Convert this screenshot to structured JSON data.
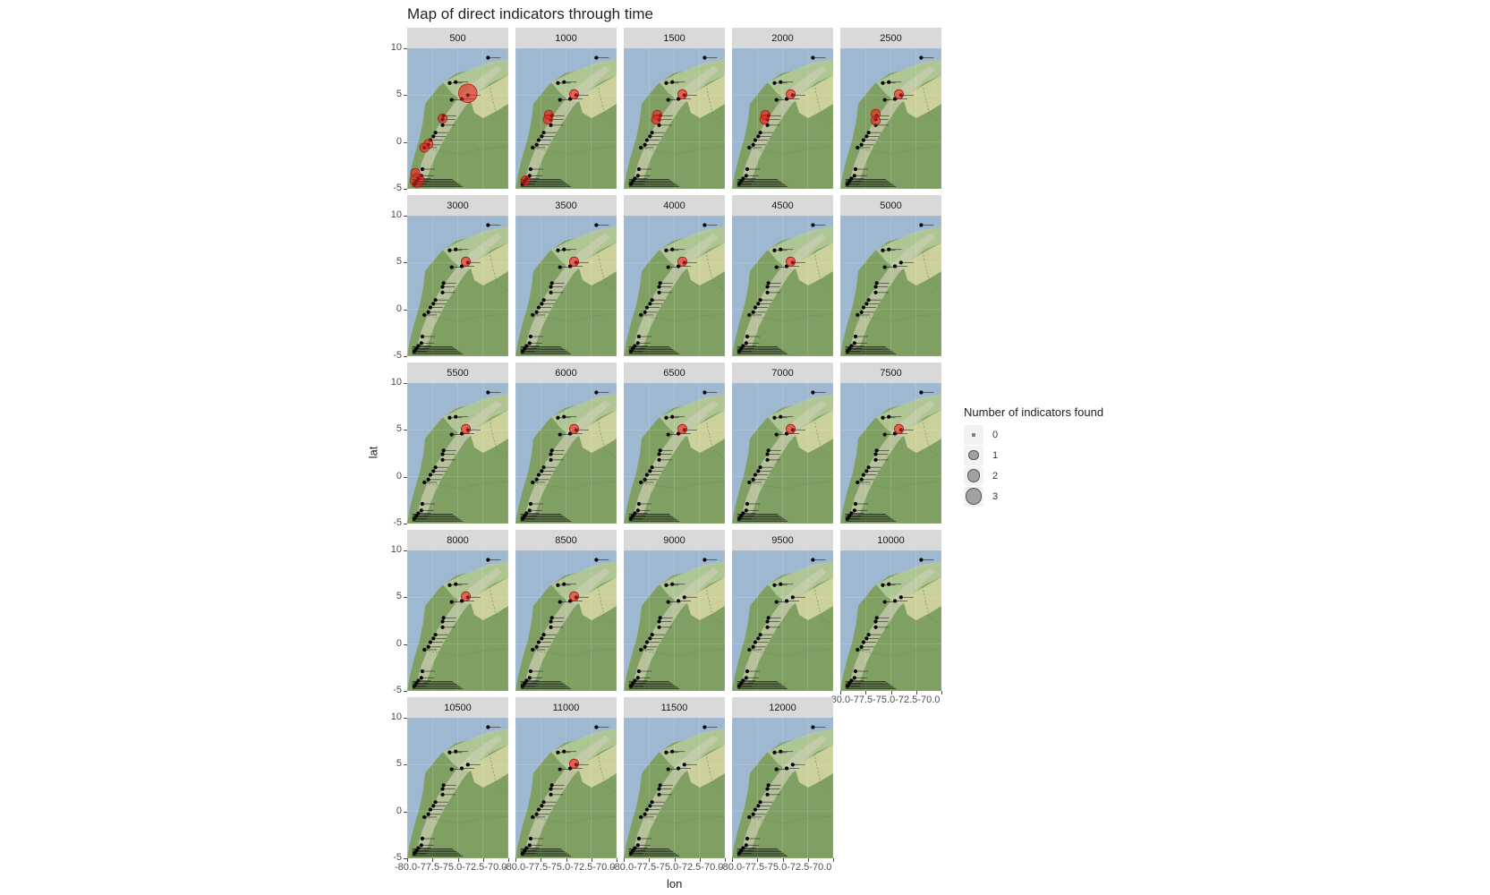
{
  "title": "Map of direct indicators through time",
  "xlabel": "lon",
  "ylabel": "lat",
  "y_ticks": [
    "10",
    "5",
    "0",
    "-5"
  ],
  "x_ticks_text": "-80.0-77.5-75.0-72.5-70.0",
  "colors": {
    "sea": "#9fb8d2",
    "land": "#7fa062",
    "highland": "#d9d9a6",
    "site": "#000000",
    "indicator": "#e8231e",
    "strip": "#d9d9d9"
  },
  "legend": {
    "title": "Number of indicators found",
    "items": [
      {
        "label": "0",
        "value": 0
      },
      {
        "label": "1",
        "value": 1
      },
      {
        "label": "2",
        "value": 2
      },
      {
        "label": "3",
        "value": 3
      }
    ]
  },
  "chart_data": {
    "type": "scatter",
    "facet_variable": "time",
    "xlim": [
      -80,
      -70
    ],
    "ylim": [
      -5,
      10
    ],
    "x_ticks": [
      -80.0,
      -77.5,
      -75.0,
      -72.5,
      -70.0
    ],
    "y_ticks": [
      -5,
      0,
      5,
      10
    ],
    "sites": [
      {
        "lon": -72.0,
        "lat": 9.0
      },
      {
        "lon": -75.8,
        "lat": 6.3
      },
      {
        "lon": -75.2,
        "lat": 6.4
      },
      {
        "lon": -74.0,
        "lat": 5.0
      },
      {
        "lon": -74.6,
        "lat": 4.6
      },
      {
        "lon": -75.6,
        "lat": 4.5
      },
      {
        "lon": -76.4,
        "lat": 2.8
      },
      {
        "lon": -76.5,
        "lat": 2.4
      },
      {
        "lon": -76.5,
        "lat": 1.8
      },
      {
        "lon": -77.2,
        "lat": 1.0
      },
      {
        "lon": -77.4,
        "lat": 0.6
      },
      {
        "lon": -77.7,
        "lat": 0.2
      },
      {
        "lon": -77.9,
        "lat": -0.3
      },
      {
        "lon": -78.3,
        "lat": -0.6
      },
      {
        "lon": -78.5,
        "lat": -2.9
      },
      {
        "lon": -78.6,
        "lat": -3.6
      },
      {
        "lon": -78.9,
        "lat": -3.9
      },
      {
        "lon": -79.1,
        "lat": -4.2
      },
      {
        "lon": -79.3,
        "lat": -4.5
      }
    ],
    "panels": [
      {
        "label": "500",
        "indicators": [
          {
            "lon": -74.0,
            "lat": 5.2,
            "n": 3
          },
          {
            "lon": -76.5,
            "lat": 2.5,
            "n": 1
          },
          {
            "lon": -77.9,
            "lat": -0.2,
            "n": 1
          },
          {
            "lon": -78.3,
            "lat": -0.6,
            "n": 1
          },
          {
            "lon": -79.2,
            "lat": -3.3,
            "n": 1
          },
          {
            "lon": -79.0,
            "lat": -4.1,
            "n": 2
          }
        ]
      },
      {
        "label": "1000",
        "indicators": [
          {
            "lon": -74.2,
            "lat": 5.1,
            "n": 1
          },
          {
            "lon": -76.7,
            "lat": 2.9,
            "n": 1
          },
          {
            "lon": -76.8,
            "lat": 2.4,
            "n": 1
          },
          {
            "lon": -79.0,
            "lat": -4.1,
            "n": 1
          }
        ]
      },
      {
        "label": "1500",
        "indicators": [
          {
            "lon": -74.2,
            "lat": 5.1,
            "n": 1
          },
          {
            "lon": -76.7,
            "lat": 2.9,
            "n": 1
          },
          {
            "lon": -76.8,
            "lat": 2.4,
            "n": 1
          }
        ]
      },
      {
        "label": "2000",
        "indicators": [
          {
            "lon": -74.2,
            "lat": 5.1,
            "n": 1
          },
          {
            "lon": -76.7,
            "lat": 2.9,
            "n": 1
          },
          {
            "lon": -76.8,
            "lat": 2.4,
            "n": 1
          }
        ]
      },
      {
        "label": "2500",
        "indicators": [
          {
            "lon": -74.2,
            "lat": 5.1,
            "n": 1
          },
          {
            "lon": -76.5,
            "lat": 3.0,
            "n": 1
          },
          {
            "lon": -76.5,
            "lat": 2.3,
            "n": 1
          }
        ]
      },
      {
        "label": "3000",
        "indicators": [
          {
            "lon": -74.2,
            "lat": 5.1,
            "n": 1
          }
        ]
      },
      {
        "label": "3500",
        "indicators": [
          {
            "lon": -74.2,
            "lat": 5.1,
            "n": 1
          }
        ]
      },
      {
        "label": "4000",
        "indicators": [
          {
            "lon": -74.2,
            "lat": 5.1,
            "n": 1
          }
        ]
      },
      {
        "label": "4500",
        "indicators": [
          {
            "lon": -74.2,
            "lat": 5.1,
            "n": 1
          }
        ]
      },
      {
        "label": "5000",
        "indicators": []
      },
      {
        "label": "5500",
        "indicators": [
          {
            "lon": -74.2,
            "lat": 5.1,
            "n": 1
          }
        ]
      },
      {
        "label": "6000",
        "indicators": [
          {
            "lon": -74.2,
            "lat": 5.1,
            "n": 1
          }
        ]
      },
      {
        "label": "6500",
        "indicators": [
          {
            "lon": -74.2,
            "lat": 5.1,
            "n": 1
          }
        ]
      },
      {
        "label": "7000",
        "indicators": [
          {
            "lon": -74.2,
            "lat": 5.1,
            "n": 1
          }
        ]
      },
      {
        "label": "7500",
        "indicators": [
          {
            "lon": -74.2,
            "lat": 5.1,
            "n": 1
          }
        ]
      },
      {
        "label": "8000",
        "indicators": [
          {
            "lon": -74.2,
            "lat": 5.1,
            "n": 1
          }
        ]
      },
      {
        "label": "8500",
        "indicators": [
          {
            "lon": -74.2,
            "lat": 5.1,
            "n": 1
          }
        ]
      },
      {
        "label": "9000",
        "indicators": []
      },
      {
        "label": "9500",
        "indicators": []
      },
      {
        "label": "10000",
        "indicators": []
      },
      {
        "label": "10500",
        "indicators": []
      },
      {
        "label": "11000",
        "indicators": [
          {
            "lon": -74.2,
            "lat": 5.1,
            "n": 1
          }
        ]
      },
      {
        "label": "11500",
        "indicators": []
      },
      {
        "label": "12000",
        "indicators": []
      }
    ]
  }
}
